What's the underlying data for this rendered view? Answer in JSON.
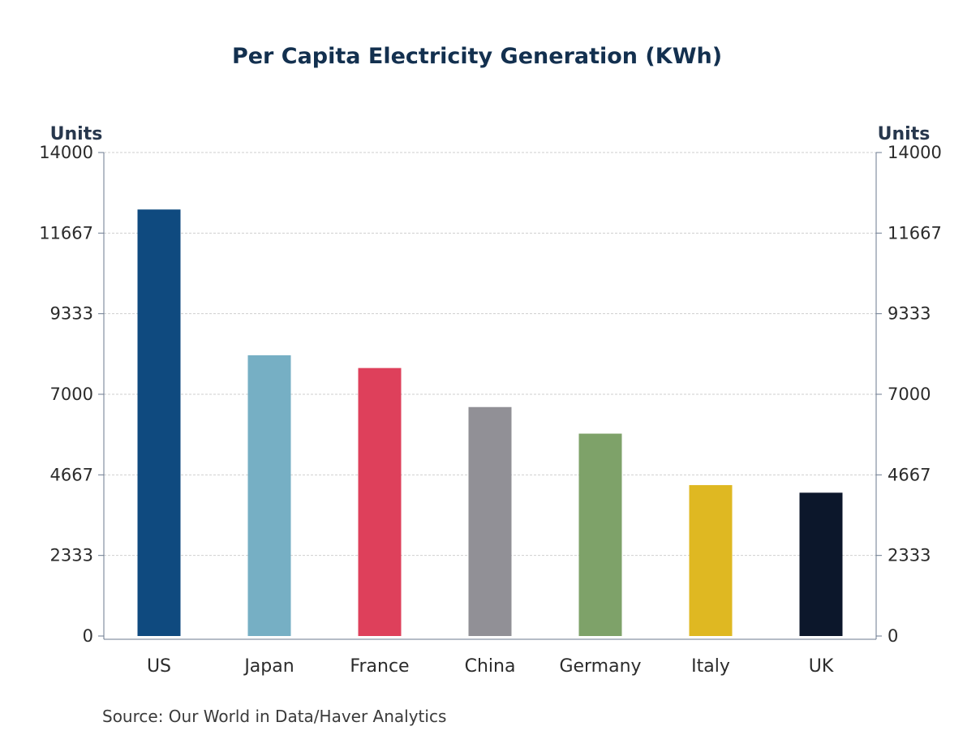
{
  "chart_data": {
    "type": "bar",
    "title": "Per Capita Electricity Generation (KWh)",
    "left_axis_label": "Units",
    "right_axis_label": "Units",
    "categories": [
      "US",
      "Japan",
      "France",
      "China",
      "Germany",
      "Italy",
      "UK"
    ],
    "values": [
      12350,
      8130,
      7760,
      6630,
      5860,
      4370,
      4150
    ],
    "bar_colors": [
      "#0f4a7f",
      "#76afc4",
      "#de405b",
      "#919096",
      "#7ea269",
      "#dfb822",
      "#0c172b"
    ],
    "ylim": [
      0,
      14000
    ],
    "y_ticks": [
      "0",
      "2333",
      "4667",
      "7000",
      "9333",
      "11667",
      "14000"
    ],
    "grid": true,
    "legend": "none",
    "source": "Source:  Our World in Data/Haver Analytics"
  }
}
